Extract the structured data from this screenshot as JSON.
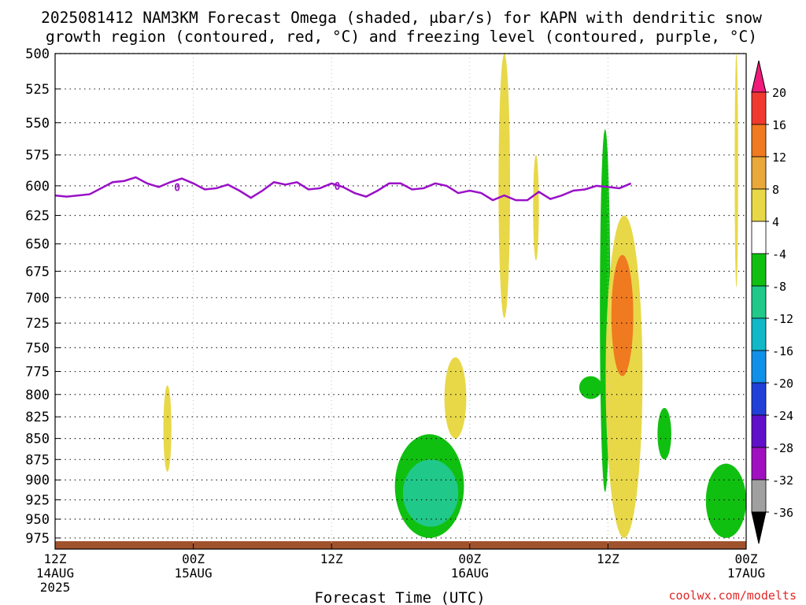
{
  "chart_data": {
    "type": "heatmap",
    "title_line1": "2025081412 NAM3KM Forecast Omega (shaded, μbar/s) for KAPN with dendritic snow",
    "title_line2": "growth region (contoured, red, °C) and freezing level (contoured, purple, °C)",
    "xlabel": "Forecast Time (UTC)",
    "credit": "coolwx.com/modelts",
    "y_axis": {
      "scale": "pressure",
      "range_mb": [
        500,
        990
      ],
      "ticks": [
        500,
        525,
        550,
        575,
        600,
        625,
        650,
        675,
        700,
        725,
        750,
        775,
        800,
        825,
        850,
        875,
        900,
        925,
        950,
        975
      ]
    },
    "x_axis": {
      "range_hours": [
        0,
        60
      ],
      "ticks": [
        {
          "h": 0,
          "label": "12Z",
          "sub": "14AUG",
          "sub2": "2025"
        },
        {
          "h": 12,
          "label": "00Z",
          "sub": "15AUG",
          "sub2": ""
        },
        {
          "h": 24,
          "label": "12Z",
          "sub": "",
          "sub2": ""
        },
        {
          "h": 36,
          "label": "00Z",
          "sub": "16AUG",
          "sub2": ""
        },
        {
          "h": 48,
          "label": "12Z",
          "sub": "",
          "sub2": ""
        },
        {
          "h": 60,
          "label": "00Z",
          "sub": "17AUG",
          "sub2": ""
        }
      ]
    },
    "colorbar": {
      "labels": [
        "20",
        "16",
        "12",
        "8",
        "4",
        "-4",
        "-8",
        "-12",
        "-16",
        "-20",
        "-24",
        "-28",
        "-32",
        "-36"
      ],
      "colors": [
        "#f01a7a",
        "#f03a30",
        "#f07a20",
        "#e8a83a",
        "#e8d848",
        "#ffffff",
        "#10c010",
        "#20c88a",
        "#10b8c8",
        "#1090e8",
        "#2040d8",
        "#6010c8",
        "#a010c0",
        "#a0a0a0",
        "#000000"
      ]
    },
    "freezing_level": {
      "label": "0",
      "color": "#9a10c8",
      "series": [
        [
          0,
          608
        ],
        [
          1,
          609
        ],
        [
          2,
          608
        ],
        [
          3,
          607
        ],
        [
          4,
          602
        ],
        [
          5,
          597
        ],
        [
          6,
          596
        ],
        [
          7,
          593
        ],
        [
          8,
          598
        ],
        [
          9,
          601
        ],
        [
          10,
          597
        ],
        [
          11,
          594
        ],
        [
          12,
          598
        ],
        [
          13,
          603
        ],
        [
          14,
          602
        ],
        [
          15,
          599
        ],
        [
          16,
          604
        ],
        [
          17,
          610
        ],
        [
          18,
          604
        ],
        [
          19,
          597
        ],
        [
          20,
          599
        ],
        [
          21,
          597
        ],
        [
          22,
          603
        ],
        [
          23,
          602
        ],
        [
          24,
          598
        ],
        [
          25,
          601
        ],
        [
          26,
          606
        ],
        [
          27,
          609
        ],
        [
          28,
          604
        ],
        [
          29,
          598
        ],
        [
          30,
          598
        ],
        [
          31,
          603
        ],
        [
          32,
          602
        ],
        [
          33,
          598
        ],
        [
          34,
          600
        ],
        [
          35,
          606
        ],
        [
          36,
          604
        ],
        [
          37,
          606
        ],
        [
          38,
          612
        ],
        [
          39,
          608
        ],
        [
          40,
          612
        ],
        [
          41,
          612
        ],
        [
          42,
          605
        ],
        [
          43,
          611
        ],
        [
          44,
          608
        ],
        [
          45,
          604
        ],
        [
          46,
          603
        ],
        [
          47,
          600
        ],
        [
          48,
          601
        ],
        [
          49,
          602
        ],
        [
          50,
          598
        ]
      ]
    },
    "omega_regions": [
      {
        "value": 4,
        "t0": 9.4,
        "t1": 10.1,
        "p0": 790,
        "p1": 890
      },
      {
        "value": -8,
        "t0": 29.5,
        "t1": 35.5,
        "p0": 845,
        "p1": 975
      },
      {
        "value": -12,
        "t0": 30.2,
        "t1": 35.0,
        "p0": 875,
        "p1": 960
      },
      {
        "value": 4,
        "t0": 33.8,
        "t1": 35.7,
        "p0": 760,
        "p1": 850
      },
      {
        "value": 4,
        "t0": 38.5,
        "t1": 39.5,
        "p0": 500,
        "p1": 720
      },
      {
        "value": 4,
        "t0": 41.5,
        "t1": 42.0,
        "p0": 575,
        "p1": 665
      },
      {
        "value": -8,
        "t0": 47.3,
        "t1": 48.2,
        "p0": 555,
        "p1": 915
      },
      {
        "value": -8,
        "t0": 45.5,
        "t1": 47.5,
        "p0": 780,
        "p1": 805
      },
      {
        "value": 4,
        "t0": 47.8,
        "t1": 51.0,
        "p0": 625,
        "p1": 975
      },
      {
        "value": 12,
        "t0": 48.3,
        "t1": 50.2,
        "p0": 660,
        "p1": 780
      },
      {
        "value": -8,
        "t0": 52.3,
        "t1": 53.5,
        "p0": 815,
        "p1": 875
      },
      {
        "value": -8,
        "t0": 56.5,
        "t1": 60.0,
        "p0": 880,
        "p1": 975
      },
      {
        "value": 4,
        "t0": 59.0,
        "t1": 59.3,
        "p0": 500,
        "p1": 690
      }
    ],
    "terrain_color": "#a0522d"
  }
}
